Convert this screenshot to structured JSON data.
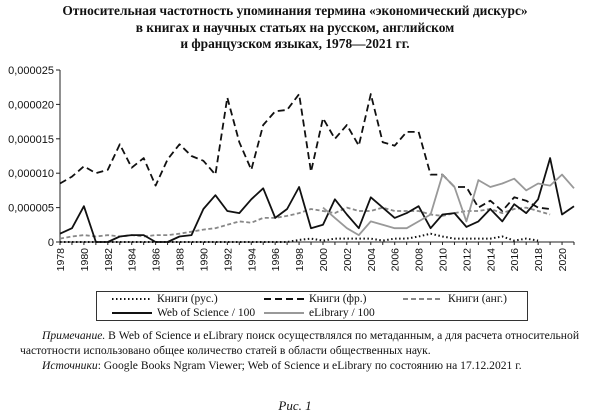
{
  "title_lines": [
    "Относительная частотность упоминания термина «экономический дискурс»",
    "в книгах и научных статьях на русском, английском",
    "и французском языках, 1978—2021 гг."
  ],
  "chart_data": {
    "type": "line",
    "y_ticks": [
      "0,000025",
      "0,000020",
      "0,000015",
      "0,000010",
      "0,000005",
      "0"
    ],
    "ylim": [
      0,
      2.5e-05
    ],
    "x": [
      1978,
      1979,
      1980,
      1981,
      1982,
      1983,
      1984,
      1985,
      1986,
      1987,
      1988,
      1989,
      1990,
      1991,
      1992,
      1993,
      1994,
      1995,
      1996,
      1997,
      1998,
      1999,
      2000,
      2001,
      2002,
      2003,
      2004,
      2005,
      2006,
      2007,
      2008,
      2009,
      2010,
      2011,
      2012,
      2013,
      2014,
      2015,
      2016,
      2017,
      2018,
      2019,
      2020,
      2021
    ],
    "x_tick_labels": [
      "1978",
      "1980",
      "1982",
      "1984",
      "1986",
      "1988",
      "1990",
      "1992",
      "1994",
      "1996",
      "1998",
      "2000",
      "2002",
      "2004",
      "2006",
      "2008",
      "2010",
      "2012",
      "2014",
      "2016",
      "2018",
      "2020"
    ],
    "series": [
      {
        "name": "Книги (рус.)",
        "style": "dotted",
        "color": "#111111",
        "values": [
          0,
          0,
          0,
          0,
          0,
          0,
          0,
          0,
          0,
          0,
          0,
          0,
          0,
          0,
          0,
          0,
          0,
          0,
          0,
          0,
          3e-07,
          5e-07,
          2e-07,
          5e-07,
          5e-07,
          5e-07,
          5e-07,
          2e-07,
          5e-07,
          5e-07,
          8e-07,
          1.2e-06,
          8e-07,
          5e-07,
          5e-07,
          5e-07,
          5e-07,
          8e-07,
          2e-07,
          5e-07,
          2e-07,
          null,
          null,
          null
        ]
      },
      {
        "name": "Книги (фр.)",
        "style": "dashed",
        "color": "#111111",
        "values": [
          8.5e-06,
          9.5e-06,
          1.1e-05,
          1e-05,
          1.05e-05,
          1.42e-05,
          1.08e-05,
          1.22e-05,
          8.2e-06,
          1.2e-05,
          1.42e-05,
          1.25e-05,
          1.18e-05,
          9.8e-06,
          2.1e-05,
          1.45e-05,
          1.05e-05,
          1.7e-05,
          1.9e-05,
          1.92e-05,
          2.15e-05,
          1.02e-05,
          1.8e-05,
          1.5e-05,
          1.7e-05,
          1.4e-05,
          2.15e-05,
          1.45e-05,
          1.4e-05,
          1.6e-05,
          1.6e-05,
          9.8e-06,
          9.8e-06,
          8e-06,
          8e-06,
          5e-06,
          6e-06,
          4.5e-06,
          6.5e-06,
          6e-06,
          5e-06,
          4.8e-06,
          null,
          null
        ]
      },
      {
        "name": "Книги (анг.)",
        "style": "dashed",
        "color": "#888888",
        "values": [
          5e-07,
          8e-07,
          1e-06,
          8e-07,
          1e-06,
          8e-07,
          1e-06,
          8e-07,
          1e-06,
          1e-06,
          1.2e-06,
          1.5e-06,
          1.8e-06,
          2e-06,
          2.5e-06,
          3e-06,
          2.8e-06,
          3.5e-06,
          3.5e-06,
          3.8e-06,
          4.2e-06,
          4.8e-06,
          4.5e-06,
          4.2e-06,
          5e-06,
          4.5e-06,
          4.5e-06,
          5e-06,
          4.5e-06,
          4.5e-06,
          4.5e-06,
          4e-06,
          3.8e-06,
          4.2e-06,
          4.5e-06,
          4.5e-06,
          4.8e-06,
          4.2e-06,
          4.8e-06,
          5e-06,
          4.5e-06,
          4e-06,
          null,
          null
        ]
      },
      {
        "name": "Web of Science / 100",
        "style": "solid",
        "color": "#111111",
        "values": [
          1.2e-06,
          2e-06,
          5.2e-06,
          0,
          0,
          8e-07,
          1e-06,
          1e-06,
          0,
          0,
          8e-07,
          1e-06,
          4.8e-06,
          6.8e-06,
          4.5e-06,
          4.2e-06,
          6.2e-06,
          7.8e-06,
          3.5e-06,
          4.8e-06,
          8e-06,
          2e-06,
          2.5e-06,
          6.2e-06,
          4e-06,
          2e-06,
          6.5e-06,
          5e-06,
          3.5e-06,
          4.2e-06,
          5.2e-06,
          2e-06,
          4e-06,
          4.2e-06,
          2.2e-06,
          3e-06,
          4.8e-06,
          3e-06,
          5.5e-06,
          4.2e-06,
          6.2e-06,
          1.22e-05,
          4e-06,
          5.2e-06
        ]
      },
      {
        "name": "eLibrary / 100",
        "style": "solid",
        "color": "#999999",
        "values": [
          null,
          null,
          null,
          null,
          null,
          null,
          null,
          null,
          null,
          null,
          null,
          null,
          null,
          null,
          null,
          null,
          null,
          null,
          null,
          null,
          null,
          null,
          5e-06,
          3.5e-06,
          2e-06,
          1e-06,
          3e-06,
          2.5e-06,
          2e-06,
          2e-06,
          3e-06,
          4e-06,
          9.8e-06,
          8e-06,
          3e-06,
          9e-06,
          8e-06,
          8.5e-06,
          9.2e-06,
          7.5e-06,
          8.5e-06,
          8.2e-06,
          9.8e-06,
          7.8e-06
        ]
      }
    ]
  },
  "note": {
    "label": "Примечание.",
    "text": " В Web of Science и eLibrary поиск осуществлялся по метаданным, а для расчета относительной частотности использовано общее количество статей в области общественных наук."
  },
  "sources": {
    "label": "Источники",
    "text": ": Google Books Ngram Viewer; Web of Science и eLibrary по состоянию на 17.12.2021 г."
  },
  "figure_caption": "Рис. 1"
}
